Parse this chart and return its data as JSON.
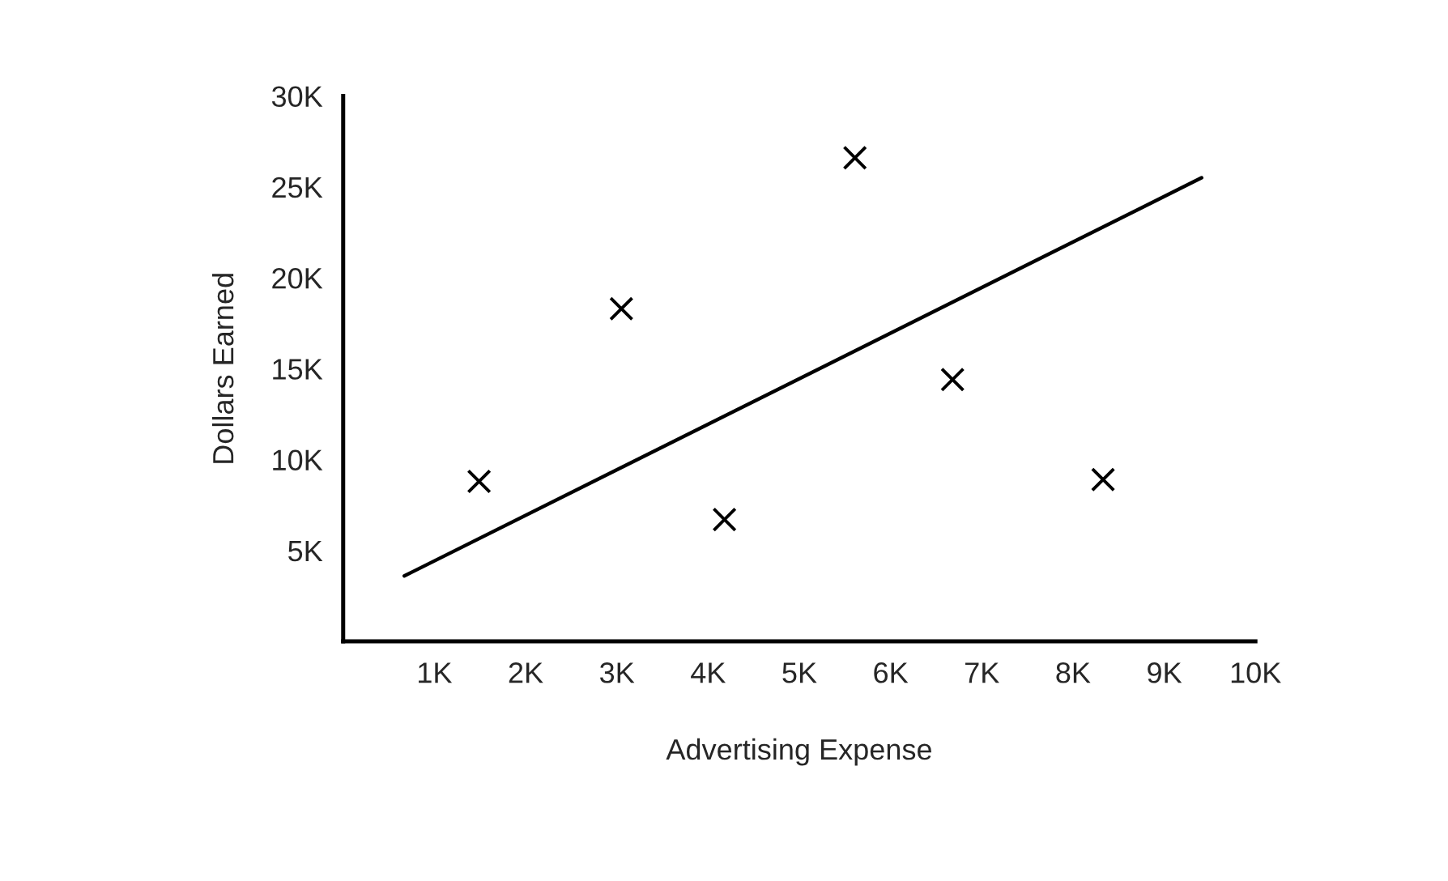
{
  "chart_data": {
    "type": "scatter",
    "xlabel": "Advertising Expense",
    "ylabel": "Dollars Earned",
    "series": [
      {
        "color": "#000000",
        "marker": "cross",
        "x": [
          1490,
          3050,
          4180,
          5610,
          6680,
          8330
        ],
        "values": [
          8800,
          18300,
          6700,
          26600,
          14400,
          8900
        ]
      },
      {
        "type": "line",
        "color": "#000000",
        "marker": "none",
        "line_style": "solid",
        "x": [
          670,
          9410
        ],
        "values": [
          3600,
          25500
        ]
      }
    ],
    "xlim": [
      0,
      10000
    ],
    "ylim": [
      0,
      30000
    ],
    "xticks": [
      {
        "value": 1000,
        "label": "1K"
      },
      {
        "value": 2000,
        "label": "2K"
      },
      {
        "value": 3000,
        "label": "3K"
      },
      {
        "value": 4000,
        "label": "4K"
      },
      {
        "value": 5000,
        "label": "5K"
      },
      {
        "value": 6000,
        "label": "6K"
      },
      {
        "value": 7000,
        "label": "7K"
      },
      {
        "value": 8000,
        "label": "8K"
      },
      {
        "value": 9000,
        "label": "9K"
      },
      {
        "value": 10000,
        "label": "10K"
      }
    ],
    "yticks": [
      {
        "value": 5000,
        "label": "5K"
      },
      {
        "value": 10000,
        "label": "10K"
      },
      {
        "value": 15000,
        "label": "15K"
      },
      {
        "value": 20000,
        "label": "20K"
      },
      {
        "value": 25000,
        "label": "25K"
      },
      {
        "value": 30000,
        "label": "30K"
      }
    ],
    "grid": false,
    "legend": false
  }
}
